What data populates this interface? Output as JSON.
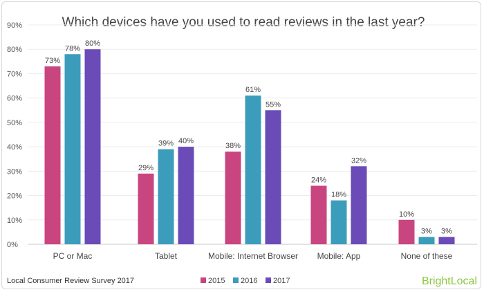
{
  "chart_data": {
    "type": "bar",
    "title": "Which devices have you used to read reviews in the last year?",
    "categories": [
      "PC or Mac",
      "Tablet",
      "Mobile: Internet Browser",
      "Mobile: App",
      "None of these"
    ],
    "series": [
      {
        "name": "2015",
        "values": [
          73,
          29,
          38,
          24,
          10
        ],
        "labels": [
          "73%",
          "29%",
          "38%",
          "24%",
          "10%"
        ],
        "color": "#c9457f"
      },
      {
        "name": "2016",
        "values": [
          78,
          39,
          61,
          18,
          3
        ],
        "labels": [
          "78%",
          "39%",
          "61%",
          "18%",
          "3%"
        ],
        "color": "#3c9cbc"
      },
      {
        "name": "2017",
        "values": [
          80,
          40,
          55,
          32,
          3
        ],
        "labels": [
          "80%",
          "40%",
          "55%",
          "32%",
          "3%"
        ],
        "color": "#6a4bb7"
      }
    ],
    "ylim": [
      0,
      90
    ],
    "yticks": [
      0,
      10,
      20,
      30,
      40,
      50,
      60,
      70,
      80,
      90
    ],
    "ytick_labels": [
      "0%",
      "10%",
      "20%",
      "30%",
      "40%",
      "50%",
      "60%",
      "70%",
      "80%",
      "90%"
    ],
    "grid": true,
    "legend": "bottom-center"
  },
  "footer": {
    "source": "Local Consumer Review Survey 2017",
    "brand": "BrightLocal",
    "brand_color": "#8cc63f"
  }
}
